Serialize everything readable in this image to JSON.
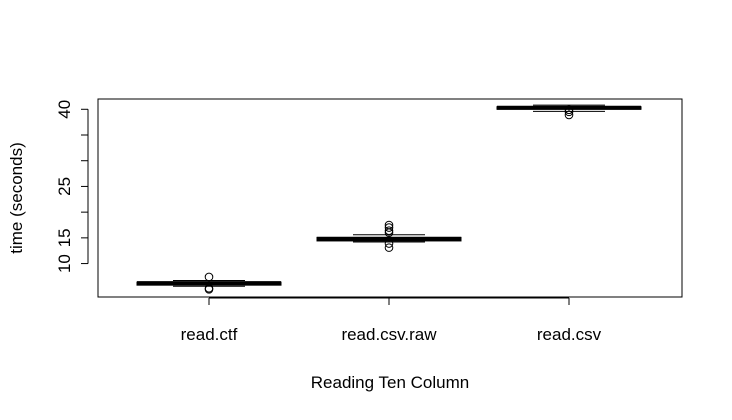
{
  "chart_data": {
    "type": "boxplot",
    "title": "",
    "xlabel": "Reading Ten Column",
    "ylabel": "time (seconds)",
    "ylim": [
      3.5,
      42
    ],
    "y_ticks": [
      10,
      15,
      25,
      40
    ],
    "y_minor_ticks": [
      20,
      30,
      35
    ],
    "categories": [
      "read.ctf",
      "read.csv.raw",
      "read.csv"
    ],
    "boxes": [
      {
        "category": "read.ctf",
        "min": 5.6,
        "q1": 5.8,
        "median": 6.2,
        "q3": 6.4,
        "max": 6.7,
        "outliers": [
          7.4,
          5.2,
          5.0
        ]
      },
      {
        "category": "read.csv.raw",
        "min": 14.2,
        "q1": 14.4,
        "median": 14.8,
        "q3": 15.1,
        "max": 15.6,
        "outliers": [
          17.5,
          17.0,
          16.4,
          16.0,
          13.9,
          13.1
        ]
      },
      {
        "category": "read.csv",
        "min": 39.6,
        "q1": 40.0,
        "median": 40.3,
        "q3": 40.5,
        "max": 40.8,
        "outliers": [
          39.9,
          39.5,
          38.9
        ]
      }
    ],
    "colors": {
      "box": "#000000",
      "background": "#ffffff"
    }
  }
}
